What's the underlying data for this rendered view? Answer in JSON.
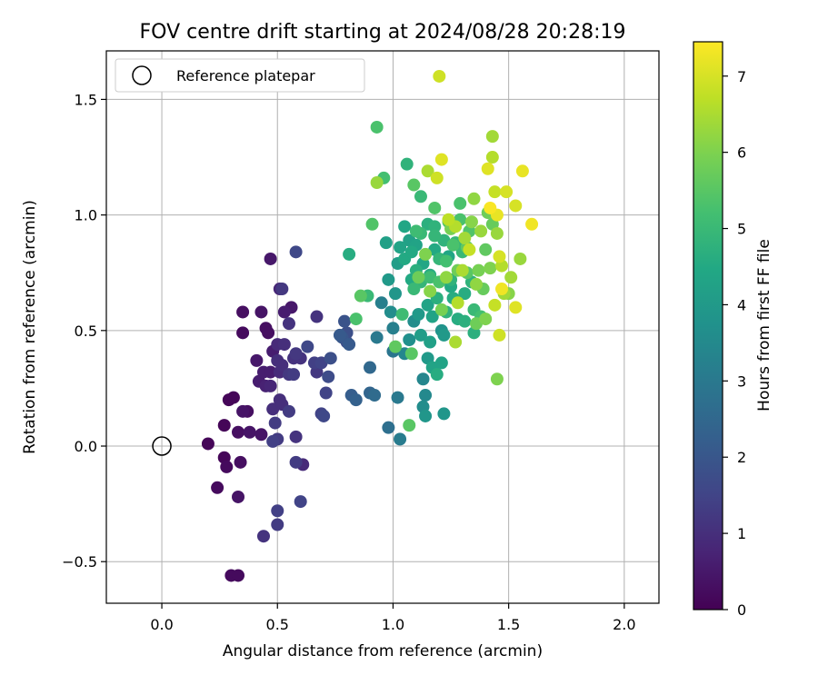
{
  "chart_data": {
    "type": "scatter",
    "title": "FOV centre drift starting at 2024/08/28 20:28:19",
    "xlabel": "Angular distance from reference (arcmin)",
    "ylabel": "Rotation from reference (arcmin)",
    "xlim": [
      -0.24,
      2.15
    ],
    "ylim": [
      -0.68,
      1.71
    ],
    "xticks": [
      "0.0",
      "0.5",
      "1.0",
      "1.5",
      "2.0"
    ],
    "yticks": [
      "−0.5",
      "0.0",
      "0.5",
      "1.0",
      "1.5"
    ],
    "grid": true,
    "legend": {
      "placement": "top-left",
      "label": "Reference platepar"
    },
    "reference_point": {
      "x": 0.0,
      "y": 0.0
    },
    "colorbar": {
      "label": "Hours from first FF file",
      "range": [
        0,
        7.45
      ],
      "ticks": [
        "0",
        "1",
        "2",
        "3",
        "4",
        "5",
        "6",
        "7"
      ],
      "colormap": "viridis"
    },
    "points": [
      [
        0.2,
        0.01,
        0.1
      ],
      [
        0.24,
        -0.18,
        0.2
      ],
      [
        0.27,
        -0.05,
        0.1
      ],
      [
        0.28,
        -0.09,
        0.2
      ],
      [
        0.27,
        0.09,
        0.1
      ],
      [
        0.29,
        0.2,
        0.1
      ],
      [
        0.31,
        0.21,
        0.1
      ],
      [
        0.3,
        -0.56,
        0.2
      ],
      [
        0.33,
        -0.56,
        0.2
      ],
      [
        0.33,
        -0.22,
        0.4
      ],
      [
        0.33,
        0.06,
        0.3
      ],
      [
        0.34,
        -0.07,
        0.3
      ],
      [
        0.35,
        0.15,
        0.4
      ],
      [
        0.37,
        0.15,
        0.3
      ],
      [
        0.35,
        0.49,
        0.2
      ],
      [
        0.35,
        0.58,
        0.3
      ],
      [
        0.38,
        0.06,
        0.4
      ],
      [
        0.41,
        0.37,
        0.5
      ],
      [
        0.42,
        0.28,
        0.6
      ],
      [
        0.43,
        0.05,
        0.4
      ],
      [
        0.43,
        0.58,
        0.4
      ],
      [
        0.44,
        0.32,
        0.6
      ],
      [
        0.45,
        0.26,
        0.7
      ],
      [
        0.45,
        0.51,
        0.3
      ],
      [
        0.46,
        0.49,
        0.3
      ],
      [
        0.47,
        0.32,
        0.6
      ],
      [
        0.47,
        0.26,
        0.8
      ],
      [
        0.47,
        0.81,
        0.5
      ],
      [
        0.48,
        0.41,
        0.6
      ],
      [
        0.48,
        0.16,
        1.0
      ],
      [
        0.48,
        0.02,
        1.4
      ],
      [
        0.5,
        0.44,
        0.9
      ],
      [
        0.5,
        0.37,
        1.0
      ],
      [
        0.51,
        0.32,
        0.9
      ],
      [
        0.51,
        0.2,
        1.0
      ],
      [
        0.51,
        0.68,
        0.8
      ],
      [
        0.52,
        0.68,
        1.2
      ],
      [
        0.49,
        0.1,
        1.3
      ],
      [
        0.5,
        -0.34,
        1.3
      ],
      [
        0.5,
        -0.28,
        1.4
      ],
      [
        0.5,
        0.03,
        1.3
      ],
      [
        0.44,
        -0.39,
        1.1
      ],
      [
        0.52,
        0.35,
        1.0
      ],
      [
        0.52,
        0.18,
        1.0
      ],
      [
        0.53,
        0.58,
        0.6
      ],
      [
        0.53,
        0.44,
        1.0
      ],
      [
        0.55,
        0.53,
        1.1
      ],
      [
        0.55,
        0.15,
        1.3
      ],
      [
        0.55,
        0.31,
        1.2
      ],
      [
        0.56,
        0.6,
        0.5
      ],
      [
        0.57,
        0.38,
        1.1
      ],
      [
        0.57,
        0.31,
        1.3
      ],
      [
        0.58,
        0.04,
        1.1
      ],
      [
        0.58,
        0.4,
        1.2
      ],
      [
        0.58,
        0.84,
        1.6
      ],
      [
        0.6,
        -0.24,
        1.5
      ],
      [
        0.58,
        -0.07,
        1.3
      ],
      [
        0.61,
        -0.08,
        0.9
      ],
      [
        0.6,
        0.38,
        1.1
      ],
      [
        0.63,
        0.43,
        1.6
      ],
      [
        0.66,
        0.36,
        1.4
      ],
      [
        0.67,
        0.56,
        1.1
      ],
      [
        0.67,
        0.32,
        1.2
      ],
      [
        0.69,
        0.36,
        1.5
      ],
      [
        0.69,
        0.14,
        1.5
      ],
      [
        0.7,
        0.13,
        1.6
      ],
      [
        0.71,
        0.23,
        1.5
      ],
      [
        0.72,
        0.3,
        1.7
      ],
      [
        0.73,
        0.38,
        1.8
      ],
      [
        0.77,
        0.48,
        2.1
      ],
      [
        0.78,
        0.47,
        2.0
      ],
      [
        0.79,
        0.54,
        1.9
      ],
      [
        0.8,
        0.49,
        1.8
      ],
      [
        0.8,
        0.45,
        1.7
      ],
      [
        0.81,
        0.44,
        2.1
      ],
      [
        0.82,
        0.22,
        2.2
      ],
      [
        0.84,
        0.2,
        2.3
      ],
      [
        0.81,
        0.83,
        4.6
      ],
      [
        0.84,
        0.55,
        5.3
      ],
      [
        0.86,
        0.65,
        5.5
      ],
      [
        0.89,
        0.65,
        5.0
      ],
      [
        0.9,
        0.34,
        2.5
      ],
      [
        0.9,
        0.23,
        2.4
      ],
      [
        0.92,
        0.22,
        2.6
      ],
      [
        0.91,
        0.96,
        5.4
      ],
      [
        0.93,
        0.47,
        3.0
      ],
      [
        0.95,
        0.62,
        3.2
      ],
      [
        0.97,
        0.88,
        4.2
      ],
      [
        0.98,
        0.08,
        2.7
      ],
      [
        0.99,
        0.58,
        3.6
      ],
      [
        1.0,
        0.51,
        3.2
      ],
      [
        1.0,
        0.41,
        2.9
      ],
      [
        1.01,
        0.66,
        3.9
      ],
      [
        1.02,
        0.21,
        3.0
      ],
      [
        1.03,
        0.03,
        3.1
      ],
      [
        1.03,
        0.86,
        4.3
      ],
      [
        1.05,
        0.4,
        3.4
      ],
      [
        1.05,
        0.81,
        4.5
      ],
      [
        1.07,
        0.46,
        3.7
      ],
      [
        1.07,
        0.89,
        4.2
      ],
      [
        1.08,
        0.72,
        4.5
      ],
      [
        1.09,
        0.54,
        3.6
      ],
      [
        1.09,
        0.68,
        5.0
      ],
      [
        1.1,
        0.76,
        4.7
      ],
      [
        1.1,
        0.87,
        4.3
      ],
      [
        1.11,
        0.57,
        4.0
      ],
      [
        1.12,
        0.48,
        4.1
      ],
      [
        1.12,
        0.71,
        4.9
      ],
      [
        1.12,
        0.92,
        5.0
      ],
      [
        1.13,
        0.79,
        4.4
      ],
      [
        1.13,
        0.17,
        3.6
      ],
      [
        1.13,
        0.29,
        3.4
      ],
      [
        1.14,
        0.13,
        3.9
      ],
      [
        1.14,
        0.22,
        3.5
      ],
      [
        1.15,
        0.38,
        4.0
      ],
      [
        1.15,
        0.61,
        4.3
      ],
      [
        1.16,
        0.45,
        4.2
      ],
      [
        1.16,
        0.74,
        4.6
      ],
      [
        1.17,
        0.56,
        4.3
      ],
      [
        1.18,
        0.85,
        4.5
      ],
      [
        1.18,
        0.95,
        4.8
      ],
      [
        1.19,
        0.64,
        4.7
      ],
      [
        1.2,
        0.71,
        5.3
      ],
      [
        1.2,
        0.81,
        4.9
      ],
      [
        1.21,
        0.5,
        3.8
      ],
      [
        1.21,
        0.36,
        4.3
      ],
      [
        1.22,
        0.14,
        3.9
      ],
      [
        1.22,
        0.89,
        4.8
      ],
      [
        1.23,
        0.58,
        4.8
      ],
      [
        1.23,
        0.8,
        5.2
      ],
      [
        1.24,
        0.97,
        5.4
      ],
      [
        1.25,
        0.72,
        4.8
      ],
      [
        1.26,
        0.64,
        4.6
      ],
      [
        1.27,
        0.88,
        4.9
      ],
      [
        1.27,
        0.45,
        6.5
      ],
      [
        1.28,
        0.76,
        5.8
      ],
      [
        1.29,
        0.98,
        5.3
      ],
      [
        1.3,
        0.84,
        5.0
      ],
      [
        1.31,
        0.66,
        4.6
      ],
      [
        1.31,
        0.54,
        4.7
      ],
      [
        1.32,
        0.86,
        5.6
      ],
      [
        1.33,
        0.93,
        5.4
      ],
      [
        1.34,
        0.71,
        4.8
      ],
      [
        1.35,
        0.49,
        4.7
      ],
      [
        1.35,
        1.07,
        6.2
      ],
      [
        1.37,
        0.76,
        5.9
      ],
      [
        1.38,
        0.56,
        5.2
      ],
      [
        1.39,
        0.68,
        5.7
      ],
      [
        1.4,
        0.85,
        5.6
      ],
      [
        1.41,
        1.01,
        5.8
      ],
      [
        1.42,
        0.77,
        6.0
      ],
      [
        1.43,
        1.25,
        6.6
      ],
      [
        1.43,
        1.34,
        6.4
      ],
      [
        1.44,
        1.1,
        6.8
      ],
      [
        1.45,
        0.29,
        6.0
      ],
      [
        1.45,
        0.92,
        6.3
      ],
      [
        1.46,
        0.48,
        6.9
      ],
      [
        1.47,
        0.78,
        6.6
      ],
      [
        1.48,
        0.66,
        6.4
      ],
      [
        1.49,
        1.1,
        7.0
      ],
      [
        1.5,
        0.66,
        6.1
      ],
      [
        1.51,
        0.73,
        6.4
      ],
      [
        1.53,
        0.6,
        7.1
      ],
      [
        1.53,
        1.04,
        7.0
      ],
      [
        1.55,
        0.81,
        6.3
      ],
      [
        1.56,
        1.19,
        7.2
      ],
      [
        1.6,
        0.96,
        7.3
      ],
      [
        1.2,
        1.6,
        6.9
      ],
      [
        0.93,
        1.38,
        5.3
      ],
      [
        0.93,
        1.14,
        6.3
      ],
      [
        0.96,
        1.16,
        5.2
      ],
      [
        1.06,
        1.22,
        4.8
      ],
      [
        1.09,
        1.13,
        5.5
      ],
      [
        1.12,
        1.08,
        5.0
      ],
      [
        1.15,
        1.19,
        6.5
      ],
      [
        1.19,
        1.16,
        6.9
      ],
      [
        1.21,
        1.24,
        7.1
      ],
      [
        1.24,
        0.98,
        6.7
      ],
      [
        1.27,
        0.95,
        6.6
      ],
      [
        1.3,
        0.76,
        6.5
      ],
      [
        1.33,
        0.85,
        6.8
      ],
      [
        1.36,
        0.7,
        6.2
      ],
      [
        1.41,
        1.2,
        7.1
      ],
      [
        1.42,
        1.03,
        7.4
      ],
      [
        1.44,
        0.61,
        6.8
      ],
      [
        1.45,
        1.0,
        7.2
      ],
      [
        1.46,
        0.82,
        7.0
      ],
      [
        1.47,
        0.68,
        7.3
      ],
      [
        1.25,
        0.94,
        5.9
      ],
      [
        1.29,
        1.05,
        5.3
      ],
      [
        1.18,
        1.03,
        5.4
      ],
      [
        1.1,
        0.93,
        5.1
      ],
      [
        1.04,
        0.57,
        5.1
      ],
      [
        1.01,
        0.43,
        5.6
      ],
      [
        1.07,
        0.09,
        5.5
      ],
      [
        1.11,
        0.73,
        5.8
      ],
      [
        1.14,
        0.83,
        6.0
      ],
      [
        1.16,
        0.67,
        6.1
      ],
      [
        1.21,
        0.59,
        5.9
      ],
      [
        1.23,
        0.73,
        6.2
      ],
      [
        1.28,
        0.62,
        6.6
      ],
      [
        1.31,
        0.9,
        6.4
      ],
      [
        1.38,
        0.93,
        6.3
      ],
      [
        1.34,
        0.97,
        6.1
      ],
      [
        1.36,
        0.53,
        5.8
      ],
      [
        1.4,
        0.55,
        6.0
      ],
      [
        1.43,
        0.96,
        5.7
      ],
      [
        1.08,
        0.4,
        5.5
      ],
      [
        0.98,
        0.72,
        4.0
      ],
      [
        1.02,
        0.79,
        4.1
      ],
      [
        1.05,
        0.95,
        4.4
      ],
      [
        1.08,
        0.84,
        4.5
      ],
      [
        1.15,
        0.96,
        4.7
      ],
      [
        1.17,
        0.34,
        4.3
      ],
      [
        1.19,
        0.31,
        4.6
      ],
      [
        1.22,
        0.48,
        4.0
      ],
      [
        1.25,
        0.69,
        4.5
      ],
      [
        1.18,
        0.91,
        4.9
      ],
      [
        1.26,
        0.87,
        5.3
      ],
      [
        1.32,
        0.75,
        5.5
      ],
      [
        1.35,
        0.59,
        5.0
      ],
      [
        1.28,
        0.55,
        4.6
      ],
      [
        1.24,
        0.82,
        4.4
      ],
      [
        1.16,
        0.73,
        5.1
      ]
    ]
  }
}
